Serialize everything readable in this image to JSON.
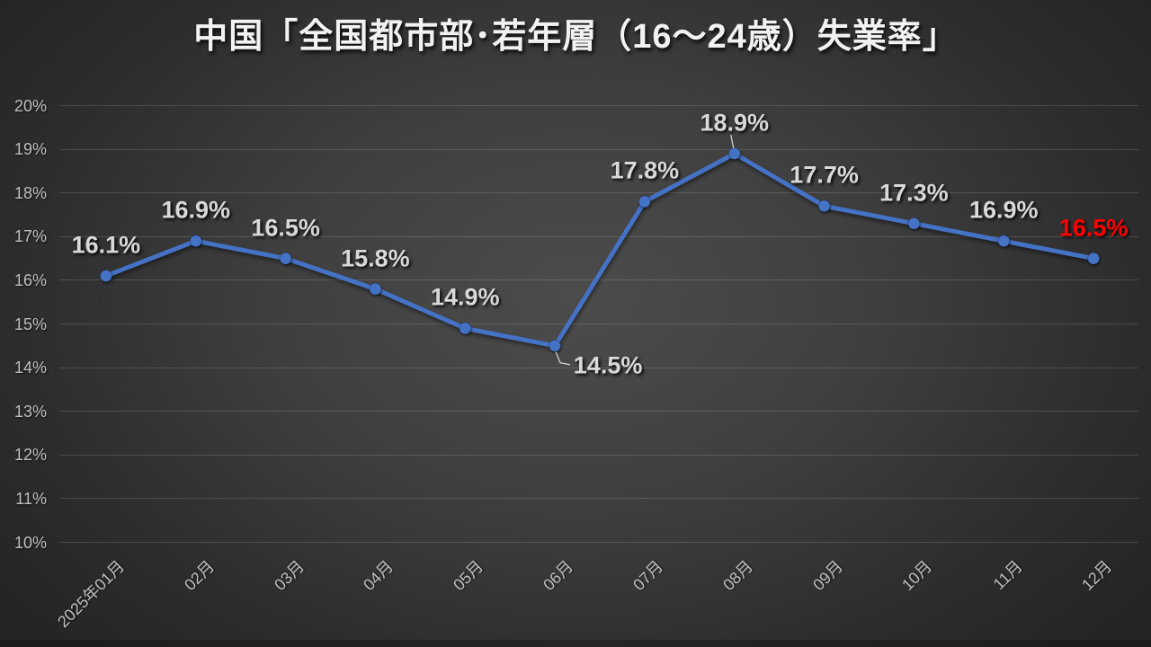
{
  "title": "中国「全国都市部･若年層（16～24歳）失業率」",
  "colors": {
    "background_center": "#4c4c4c",
    "background_edge": "#242424",
    "line": "#4472c4",
    "data_label": "#d9d9d9",
    "final_label": "#ff0000",
    "axis_label": "#bfbfbf",
    "gridline": "rgba(255,255,255,0.14)",
    "title_color": "#f2f2f2"
  },
  "chart_data": {
    "type": "line",
    "title": "中国「全国都市部･若年層（16～24歳）失業率」",
    "categories": [
      "2025年01月",
      "02月",
      "03月",
      "04月",
      "05月",
      "06月",
      "07月",
      "08月",
      "09月",
      "10月",
      "11月",
      "12月"
    ],
    "values": [
      16.1,
      16.9,
      16.5,
      15.8,
      14.9,
      14.5,
      17.8,
      18.9,
      17.7,
      17.3,
      16.9,
      16.5
    ],
    "data_labels": [
      {
        "text": "16.1%",
        "position": "above"
      },
      {
        "text": "16.9%",
        "position": "above"
      },
      {
        "text": "16.5%",
        "position": "above"
      },
      {
        "text": "15.8%",
        "position": "above"
      },
      {
        "text": "14.9%",
        "position": "above"
      },
      {
        "text": "14.5%",
        "position": "below-right",
        "leader": true
      },
      {
        "text": "17.8%",
        "position": "above"
      },
      {
        "text": "18.9%",
        "position": "above",
        "leader": true
      },
      {
        "text": "17.7%",
        "position": "above"
      },
      {
        "text": "17.3%",
        "position": "above"
      },
      {
        "text": "16.9%",
        "position": "above"
      },
      {
        "text": "16.5%",
        "position": "above",
        "color": "#ff0000"
      }
    ],
    "ylim": [
      10,
      20
    ],
    "y_ticks": [
      "10%",
      "11%",
      "12%",
      "13%",
      "14%",
      "15%",
      "16%",
      "17%",
      "18%",
      "19%",
      "20%"
    ],
    "xlabel": "",
    "ylabel": "",
    "grid": "horizontal",
    "legend": "none"
  }
}
